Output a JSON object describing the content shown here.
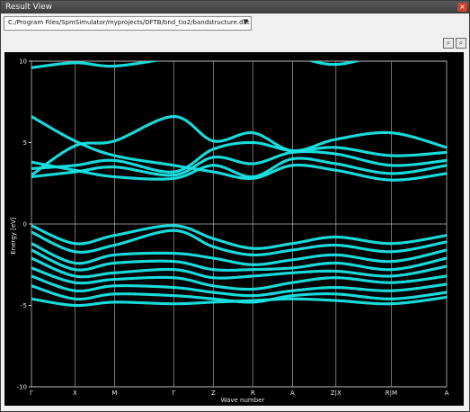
{
  "window": {
    "title": "Result View",
    "close_glyph": "×"
  },
  "path": {
    "value": "C:/Program Files/SpmSimulator/myprojects/DFTB/bnd_tio2/bandstructure.dat",
    "arrow": "▼"
  },
  "toolbar": {
    "zoom_in_icon": "zoom-in-icon",
    "zoom_out_icon": "zoom-out-icon"
  },
  "chart_data": {
    "type": "line",
    "xlabel": "Wave number",
    "ylabel": "Energy [eV]",
    "ylim": [
      -10,
      10
    ],
    "y_ticks": [
      -10,
      -5,
      0,
      5,
      10
    ],
    "y_tick_labels": [
      "-10",
      "-5",
      "0",
      "5",
      "10"
    ],
    "kpoints": [
      "Γ",
      "X",
      "M",
      "Γ",
      "Z",
      "R",
      "A",
      "Z|X",
      "R|M",
      "A"
    ],
    "kpoint_positions": [
      0,
      1.1,
      2.1,
      3.6,
      4.6,
      5.6,
      6.6,
      7.7,
      9.1,
      10.5
    ],
    "grid": true,
    "line_color": "#19e6e6",
    "series": [
      {
        "x": [
          0,
          1.1,
          2.1,
          3.6,
          4.6,
          5.6,
          6.6,
          7.7,
          9.1,
          10.5
        ],
        "values": [
          -0.1,
          -1.2,
          -0.7,
          -0.1,
          -0.9,
          -1.5,
          -1.2,
          -0.8,
          -1.2,
          -0.7
        ]
      },
      {
        "x": [
          0,
          1.1,
          2.1,
          3.6,
          4.6,
          5.6,
          6.6,
          7.7,
          9.1,
          10.5
        ],
        "values": [
          -0.5,
          -1.7,
          -1.3,
          -0.4,
          -1.4,
          -1.9,
          -1.6,
          -1.3,
          -1.7,
          -1.1
        ]
      },
      {
        "x": [
          0,
          1.1,
          2.1,
          3.6,
          4.6,
          5.6,
          6.6,
          7.7,
          9.1,
          10.5
        ],
        "values": [
          -1.2,
          -2.4,
          -1.9,
          -1.8,
          -2.1,
          -2.5,
          -2.2,
          -1.9,
          -2.3,
          -1.6
        ]
      },
      {
        "x": [
          0,
          1.1,
          2.1,
          3.6,
          4.6,
          5.6,
          6.6,
          7.7,
          9.1,
          10.5
        ],
        "values": [
          -1.6,
          -2.8,
          -2.4,
          -2.3,
          -2.8,
          -2.8,
          -2.7,
          -2.4,
          -2.8,
          -2.1
        ]
      },
      {
        "x": [
          0,
          1.1,
          2.1,
          3.6,
          4.6,
          5.6,
          6.6,
          7.7,
          9.1,
          10.5
        ],
        "values": [
          -2.1,
          -3.2,
          -3.0,
          -2.8,
          -3.3,
          -3.2,
          -3.0,
          -2.9,
          -3.2,
          -2.6
        ]
      },
      {
        "x": [
          0,
          1.1,
          2.1,
          3.6,
          4.6,
          5.6,
          6.6,
          7.7,
          9.1,
          10.5
        ],
        "values": [
          -2.7,
          -3.6,
          -3.4,
          -3.3,
          -3.8,
          -4.0,
          -3.6,
          -3.3,
          -3.6,
          -3.2
        ]
      },
      {
        "x": [
          0,
          1.1,
          2.1,
          3.6,
          4.6,
          5.6,
          6.6,
          7.7,
          9.1,
          10.5
        ],
        "values": [
          -3.2,
          -4.1,
          -3.8,
          -3.9,
          -4.2,
          -4.4,
          -4.1,
          -3.9,
          -4.1,
          -3.7
        ]
      },
      {
        "x": [
          0,
          1.1,
          2.1,
          3.6,
          4.6,
          5.6,
          6.6,
          7.7,
          9.1,
          10.5
        ],
        "values": [
          -3.8,
          -4.6,
          -4.3,
          -4.4,
          -4.6,
          -4.8,
          -4.4,
          -4.3,
          -4.6,
          -4.2
        ]
      },
      {
        "x": [
          0,
          1.1,
          2.1,
          3.6,
          4.6,
          5.6,
          6.6,
          7.7,
          9.1,
          10.5
        ],
        "values": [
          -4.6,
          -5.0,
          -4.8,
          -4.9,
          -4.8,
          -4.7,
          -4.6,
          -4.7,
          -4.9,
          -4.5
        ]
      },
      {
        "x": [
          0,
          1.1,
          2.1,
          3.6,
          4.6,
          5.6,
          6.6,
          7.7,
          9.1,
          10.5
        ],
        "values": [
          3.0,
          4.8,
          5.1,
          6.6,
          5.1,
          5.6,
          4.5,
          5.2,
          5.6,
          4.7
        ]
      },
      {
        "x": [
          0,
          1.1,
          2.1,
          3.6,
          4.6,
          5.6,
          6.6,
          7.7,
          9.1,
          10.5
        ],
        "values": [
          3.4,
          3.6,
          3.9,
          3.2,
          4.6,
          5.0,
          4.5,
          4.7,
          4.2,
          4.4
        ]
      },
      {
        "x": [
          0,
          1.1,
          2.1,
          3.6,
          4.6,
          5.6,
          6.6,
          7.7,
          9.1,
          10.5
        ],
        "values": [
          2.9,
          3.2,
          3.5,
          3.0,
          4.1,
          3.7,
          4.4,
          4.3,
          3.6,
          3.9
        ]
      },
      {
        "x": [
          0,
          1.1,
          2.1,
          3.6,
          4.6,
          5.6,
          6.6,
          7.7,
          9.1,
          10.5
        ],
        "values": [
          3.8,
          3.3,
          2.9,
          2.8,
          3.6,
          2.9,
          4.0,
          3.7,
          3.1,
          3.6
        ]
      },
      {
        "x": [
          0,
          1.1,
          2.1,
          3.6,
          4.6,
          5.6,
          6.6,
          7.7,
          9.1,
          10.5
        ],
        "values": [
          6.6,
          5.1,
          4.2,
          3.6,
          3.2,
          2.8,
          3.6,
          3.3,
          2.7,
          3.1
        ]
      },
      {
        "x": [
          0,
          1.1,
          2.1,
          3.6,
          4.6,
          5.6,
          6.6,
          7.7,
          9.1,
          10.5
        ],
        "values": [
          9.6,
          9.9,
          9.7,
          10.2,
          10.4,
          10.5,
          10.3,
          9.8,
          10.5,
          10.6
        ]
      }
    ]
  }
}
